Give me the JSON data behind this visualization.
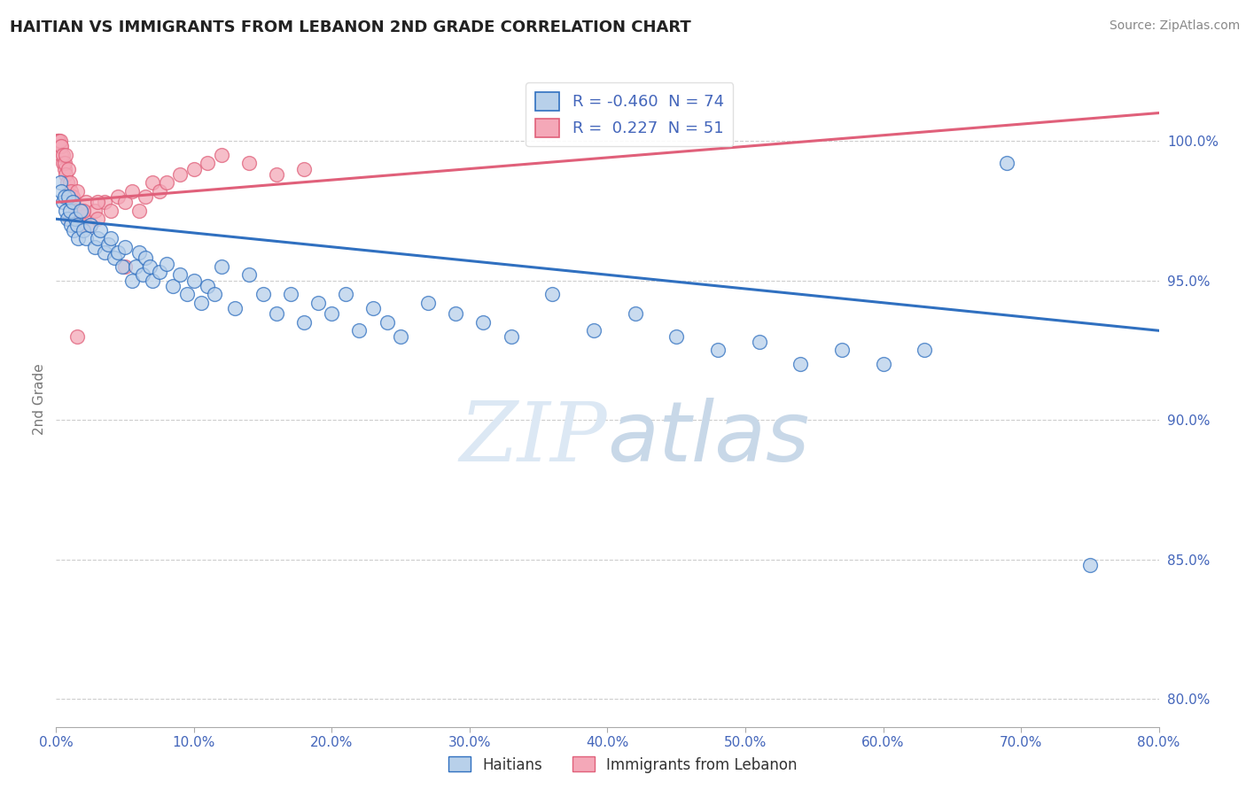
{
  "title": "HAITIAN VS IMMIGRANTS FROM LEBANON 2ND GRADE CORRELATION CHART",
  "source": "Source: ZipAtlas.com",
  "ylabel": "2nd Grade",
  "x_min": 0.0,
  "x_max": 0.8,
  "y_min": 79.0,
  "y_max": 102.5,
  "yticks": [
    80.0,
    85.0,
    90.0,
    95.0,
    100.0
  ],
  "xticks": [
    0.0,
    0.1,
    0.2,
    0.3,
    0.4,
    0.5,
    0.6,
    0.7,
    0.8
  ],
  "blue_R": -0.46,
  "blue_N": 74,
  "pink_R": 0.227,
  "pink_N": 51,
  "blue_color": "#b8d0ea",
  "blue_line_color": "#3070c0",
  "pink_color": "#f4a8b8",
  "pink_line_color": "#e0607a",
  "background_color": "#ffffff",
  "grid_color": "#c8c8c8",
  "watermark_color": "#dce8f4",
  "title_color": "#222222",
  "axis_label_color": "#4466bb",
  "blue_trend_x0": 0.0,
  "blue_trend_y0": 97.2,
  "blue_trend_x1": 0.8,
  "blue_trend_y1": 93.2,
  "pink_trend_x0": 0.0,
  "pink_trend_y0": 97.8,
  "pink_trend_x1": 0.2,
  "pink_trend_y1": 98.6,
  "blue_scatter_x": [
    0.003,
    0.004,
    0.005,
    0.006,
    0.007,
    0.008,
    0.009,
    0.01,
    0.011,
    0.012,
    0.013,
    0.014,
    0.015,
    0.016,
    0.018,
    0.02,
    0.022,
    0.025,
    0.028,
    0.03,
    0.032,
    0.035,
    0.038,
    0.04,
    0.042,
    0.045,
    0.048,
    0.05,
    0.055,
    0.058,
    0.06,
    0.063,
    0.065,
    0.068,
    0.07,
    0.075,
    0.08,
    0.085,
    0.09,
    0.095,
    0.1,
    0.105,
    0.11,
    0.115,
    0.12,
    0.13,
    0.14,
    0.15,
    0.16,
    0.17,
    0.18,
    0.19,
    0.2,
    0.21,
    0.22,
    0.23,
    0.24,
    0.25,
    0.27,
    0.29,
    0.31,
    0.33,
    0.36,
    0.39,
    0.42,
    0.45,
    0.48,
    0.51,
    0.54,
    0.57,
    0.6,
    0.63,
    0.69,
    0.75
  ],
  "blue_scatter_y": [
    98.5,
    98.2,
    97.8,
    98.0,
    97.5,
    97.2,
    98.0,
    97.5,
    97.0,
    97.8,
    96.8,
    97.2,
    97.0,
    96.5,
    97.5,
    96.8,
    96.5,
    97.0,
    96.2,
    96.5,
    96.8,
    96.0,
    96.3,
    96.5,
    95.8,
    96.0,
    95.5,
    96.2,
    95.0,
    95.5,
    96.0,
    95.2,
    95.8,
    95.5,
    95.0,
    95.3,
    95.6,
    94.8,
    95.2,
    94.5,
    95.0,
    94.2,
    94.8,
    94.5,
    95.5,
    94.0,
    95.2,
    94.5,
    93.8,
    94.5,
    93.5,
    94.2,
    93.8,
    94.5,
    93.2,
    94.0,
    93.5,
    93.0,
    94.2,
    93.8,
    93.5,
    93.0,
    94.5,
    93.2,
    93.8,
    93.0,
    92.5,
    92.8,
    92.0,
    92.5,
    92.0,
    92.5,
    99.2,
    84.8
  ],
  "pink_scatter_x": [
    0.001,
    0.002,
    0.002,
    0.003,
    0.003,
    0.004,
    0.004,
    0.005,
    0.005,
    0.006,
    0.006,
    0.007,
    0.007,
    0.008,
    0.009,
    0.01,
    0.011,
    0.012,
    0.013,
    0.014,
    0.015,
    0.016,
    0.017,
    0.018,
    0.02,
    0.022,
    0.025,
    0.028,
    0.03,
    0.035,
    0.04,
    0.045,
    0.05,
    0.055,
    0.06,
    0.065,
    0.07,
    0.075,
    0.08,
    0.09,
    0.1,
    0.11,
    0.12,
    0.14,
    0.16,
    0.18,
    0.01,
    0.02,
    0.03,
    0.015,
    0.05
  ],
  "pink_scatter_y": [
    100.0,
    100.0,
    100.0,
    99.8,
    100.0,
    99.5,
    99.8,
    99.2,
    99.5,
    99.0,
    99.2,
    98.8,
    99.5,
    98.5,
    99.0,
    98.5,
    98.2,
    98.0,
    97.8,
    97.5,
    98.2,
    97.2,
    97.5,
    97.0,
    97.3,
    97.8,
    97.0,
    97.5,
    97.2,
    97.8,
    97.5,
    98.0,
    97.8,
    98.2,
    97.5,
    98.0,
    98.5,
    98.2,
    98.5,
    98.8,
    99.0,
    99.2,
    99.5,
    99.2,
    98.8,
    99.0,
    97.2,
    97.5,
    97.8,
    93.0,
    95.5
  ]
}
